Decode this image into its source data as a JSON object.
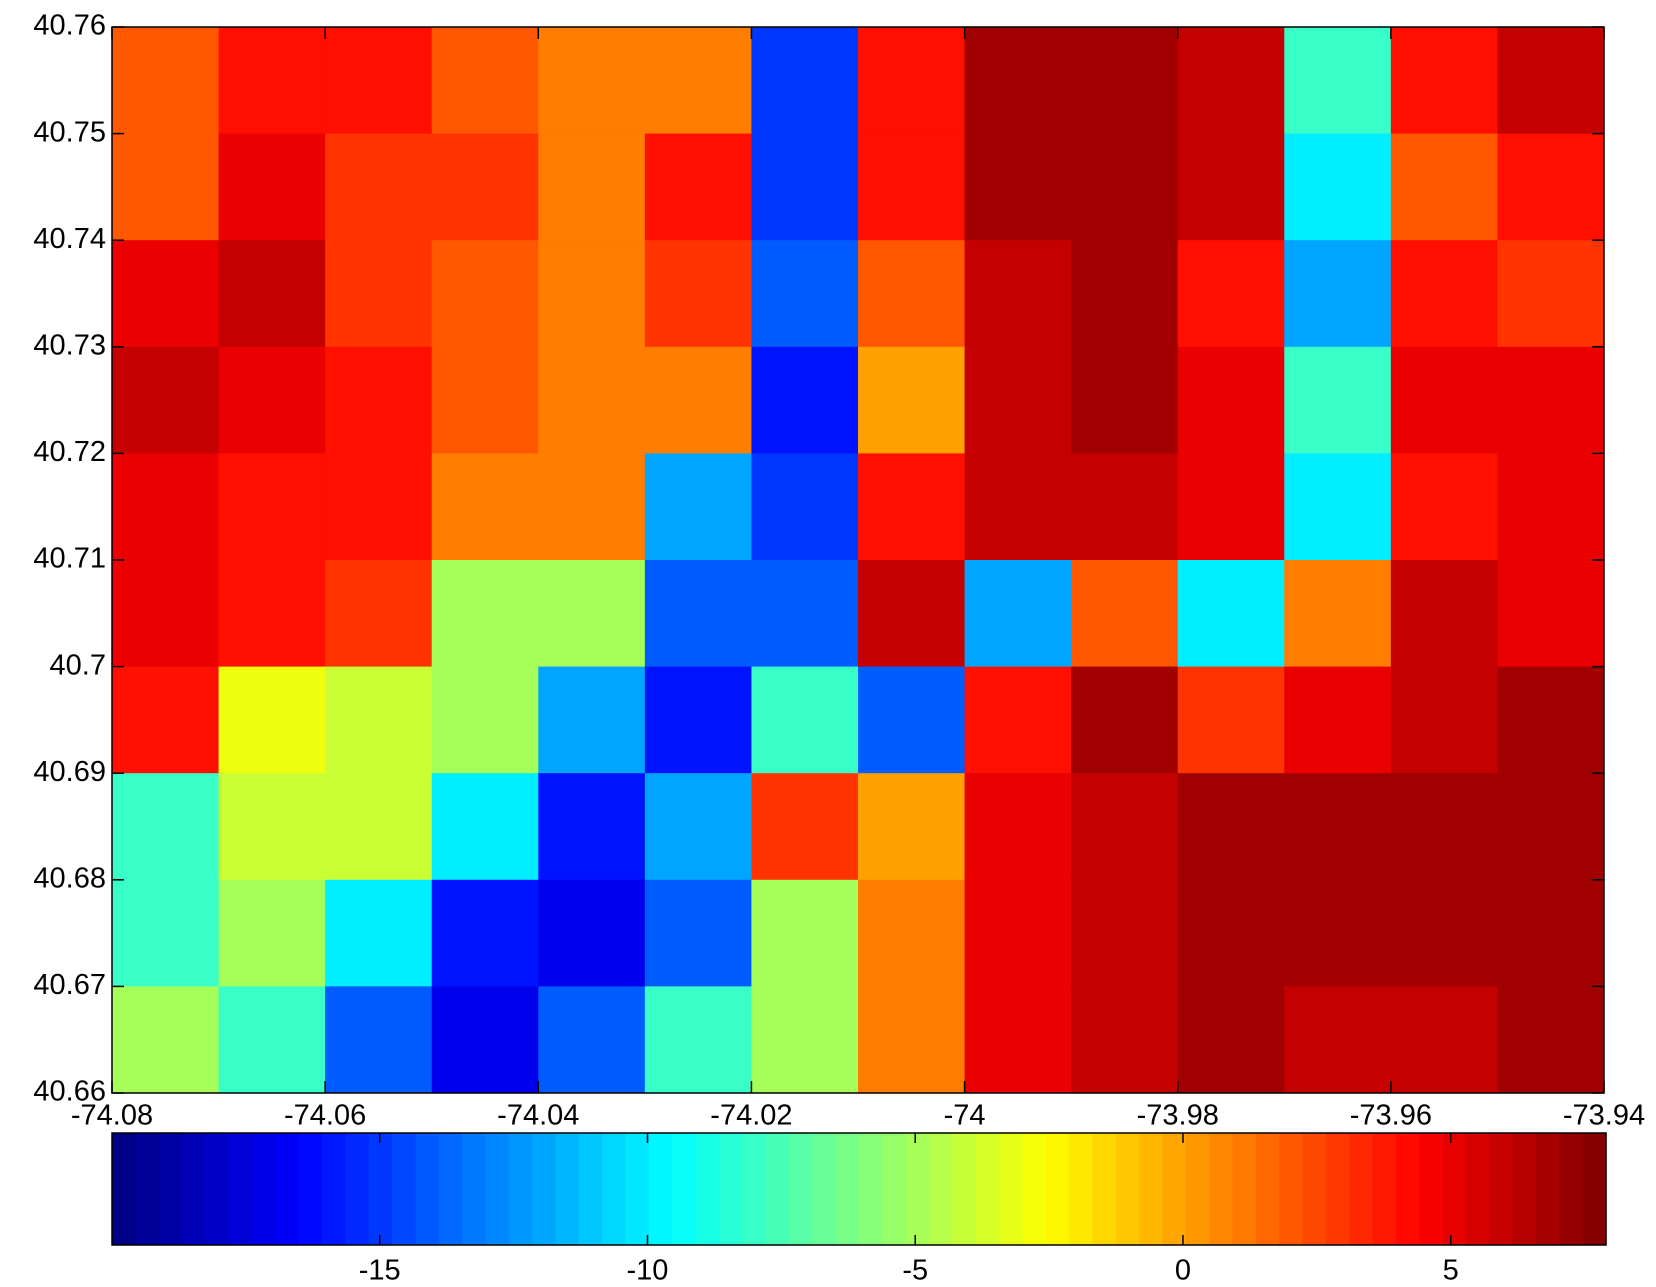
{
  "chart_data": {
    "type": "heatmap",
    "x": [
      -74.075,
      -74.065,
      -74.055,
      -74.045,
      -74.035,
      -74.025,
      -74.015,
      -74.005,
      -73.995,
      -73.985,
      -73.975,
      -73.965,
      -73.955,
      -73.945
    ],
    "y": [
      40.755,
      40.745,
      40.735,
      40.725,
      40.715,
      40.705,
      40.695,
      40.685,
      40.675,
      40.665
    ],
    "values": [
      [
        2,
        4,
        4,
        2,
        1,
        1,
        -15,
        4,
        7,
        7,
        6,
        -8,
        4,
        6
      ],
      [
        2,
        5,
        3,
        3,
        1,
        4,
        -15,
        4,
        7,
        7,
        6,
        -10,
        2,
        4
      ],
      [
        5,
        6,
        3,
        2,
        1,
        3,
        -14,
        2,
        6,
        7,
        4,
        -12,
        4,
        3
      ],
      [
        6,
        5,
        4,
        2,
        1,
        1,
        -16,
        0,
        6,
        7,
        5,
        -8,
        5,
        5
      ],
      [
        5,
        4,
        4,
        1,
        1,
        -12,
        -15,
        4,
        6,
        6,
        5,
        -10,
        4,
        5
      ],
      [
        5,
        4,
        3,
        -5,
        -5,
        -14,
        -14,
        6,
        -12,
        2,
        -10,
        1,
        6,
        5
      ],
      [
        4,
        -3,
        -4,
        -5,
        -12,
        -16,
        -8,
        -14,
        4,
        7,
        3,
        5,
        6,
        7
      ],
      [
        -8,
        -4,
        -4,
        -10,
        -16,
        -12,
        3,
        0,
        5,
        6,
        7,
        7,
        7,
        7
      ],
      [
        -8,
        -5,
        -10,
        -16,
        -17,
        -14,
        -5,
        1,
        5,
        6,
        7,
        7,
        7,
        7
      ],
      [
        -5,
        -8,
        -14,
        -17,
        -14,
        -8,
        -5,
        1,
        5,
        6,
        7,
        6,
        6,
        7
      ]
    ],
    "xlim": [
      -74.08,
      -73.94
    ],
    "ylim": [
      40.66,
      40.76
    ],
    "xticks": [
      -74.08,
      -74.06,
      -74.04,
      -74.02,
      -74,
      -73.98,
      -73.96,
      -73.94
    ],
    "yticks": [
      40.66,
      40.67,
      40.68,
      40.69,
      40.7,
      40.71,
      40.72,
      40.73,
      40.74,
      40.75,
      40.76
    ],
    "colormap": "jet",
    "clim": [
      -20,
      7.9
    ],
    "cticks": [
      -15,
      -10,
      -5,
      0,
      5
    ]
  }
}
